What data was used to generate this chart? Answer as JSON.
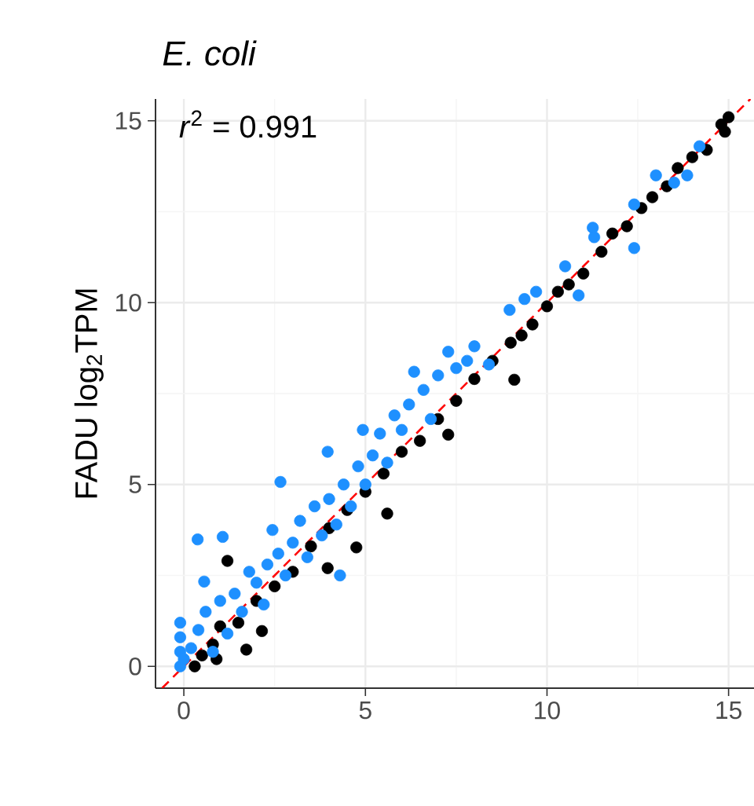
{
  "chart_data": {
    "type": "scatter",
    "title": "E. coli",
    "ylabel": "FADU log$_{2}$TPM",
    "annotations": [
      "*r*$^{2}$ = 0.991"
    ],
    "xlim": [
      -0.78,
      15.7
    ],
    "ylim": [
      -0.6,
      15.6
    ],
    "xticks": [
      0,
      5,
      10,
      15
    ],
    "yticks": [
      0,
      5,
      10,
      15
    ],
    "grid": true,
    "series": [
      {
        "color": "#000000",
        "marker": "circle",
        "x": [
          0.9,
          0.3,
          0.5,
          0.8,
          1.0,
          1.2,
          1.5,
          1.72,
          2.15,
          2.0,
          2.5,
          3.0,
          3.5,
          3.96,
          4.0,
          4.75,
          4.5,
          5.0,
          5.6,
          5.5,
          6.0,
          6.5,
          7.0,
          7.28,
          7.5,
          8.0,
          8.5,
          9.1,
          9.0,
          9.3,
          9.6,
          10.0,
          10.3,
          10.6,
          11.0,
          11.5,
          11.8,
          12.2,
          12.6,
          12.9,
          13.3,
          13.6,
          14.0,
          14.4,
          14.8,
          15.0,
          14.9
        ],
        "values": [
          0.2,
          0.0,
          0.3,
          0.6,
          1.1,
          2.9,
          1.2,
          0.46,
          0.97,
          1.8,
          2.2,
          2.6,
          3.3,
          2.7,
          3.8,
          3.27,
          4.3,
          4.8,
          4.2,
          5.3,
          5.9,
          6.2,
          6.8,
          6.37,
          7.3,
          7.9,
          8.4,
          7.88,
          8.9,
          9.1,
          9.4,
          9.9,
          10.3,
          10.5,
          10.8,
          11.4,
          11.9,
          12.1,
          12.6,
          12.9,
          13.2,
          13.7,
          14.0,
          14.2,
          14.9,
          15.1,
          14.7
        ]
      },
      {
        "color": "#1e90ff",
        "marker": "circle",
        "x": [
          -0.1,
          -0.1,
          -0.1,
          -0.1,
          0.0,
          0.2,
          0.38,
          0.56,
          0.4,
          0.6,
          0.8,
          1.0,
          1.07,
          1.2,
          1.4,
          1.6,
          1.8,
          2.0,
          2.2,
          2.44,
          2.3,
          2.66,
          2.6,
          2.8,
          3.0,
          3.2,
          3.4,
          3.6,
          3.8,
          3.96,
          4.0,
          4.3,
          4.2,
          4.4,
          4.6,
          4.93,
          4.8,
          5.0,
          5.2,
          5.4,
          5.6,
          5.8,
          6.0,
          6.2,
          6.34,
          6.6,
          6.8,
          7.0,
          7.28,
          7.5,
          7.8,
          8.0,
          8.4,
          8.97,
          9.38,
          9.7,
          10.5,
          10.87,
          11.26,
          11.3,
          12.4,
          12.4,
          13.0,
          13.5,
          13.86,
          14.2
        ],
        "values": [
          0.0,
          0.4,
          0.8,
          1.2,
          0.2,
          0.5,
          3.49,
          2.33,
          1.0,
          1.5,
          0.4,
          1.8,
          3.56,
          0.9,
          2.0,
          1.5,
          2.6,
          2.3,
          1.7,
          3.75,
          2.8,
          5.07,
          3.1,
          2.5,
          3.4,
          4.0,
          3.0,
          4.4,
          3.6,
          5.9,
          4.6,
          2.5,
          3.9,
          5.0,
          4.4,
          6.5,
          5.5,
          5.0,
          5.8,
          6.4,
          5.6,
          6.9,
          6.5,
          7.2,
          8.1,
          7.6,
          6.8,
          8.0,
          8.65,
          8.2,
          8.4,
          8.8,
          8.3,
          9.8,
          10.1,
          10.3,
          11.0,
          10.2,
          12.06,
          11.8,
          12.7,
          11.5,
          13.5,
          13.3,
          13.5,
          14.3
        ]
      },
      {
        "type": "line",
        "color": "#ff0000",
        "line_style": "dashed",
        "marker": "none",
        "x": [
          -0.6,
          15.6
        ],
        "values": [
          -0.6,
          15.6
        ]
      }
    ]
  }
}
